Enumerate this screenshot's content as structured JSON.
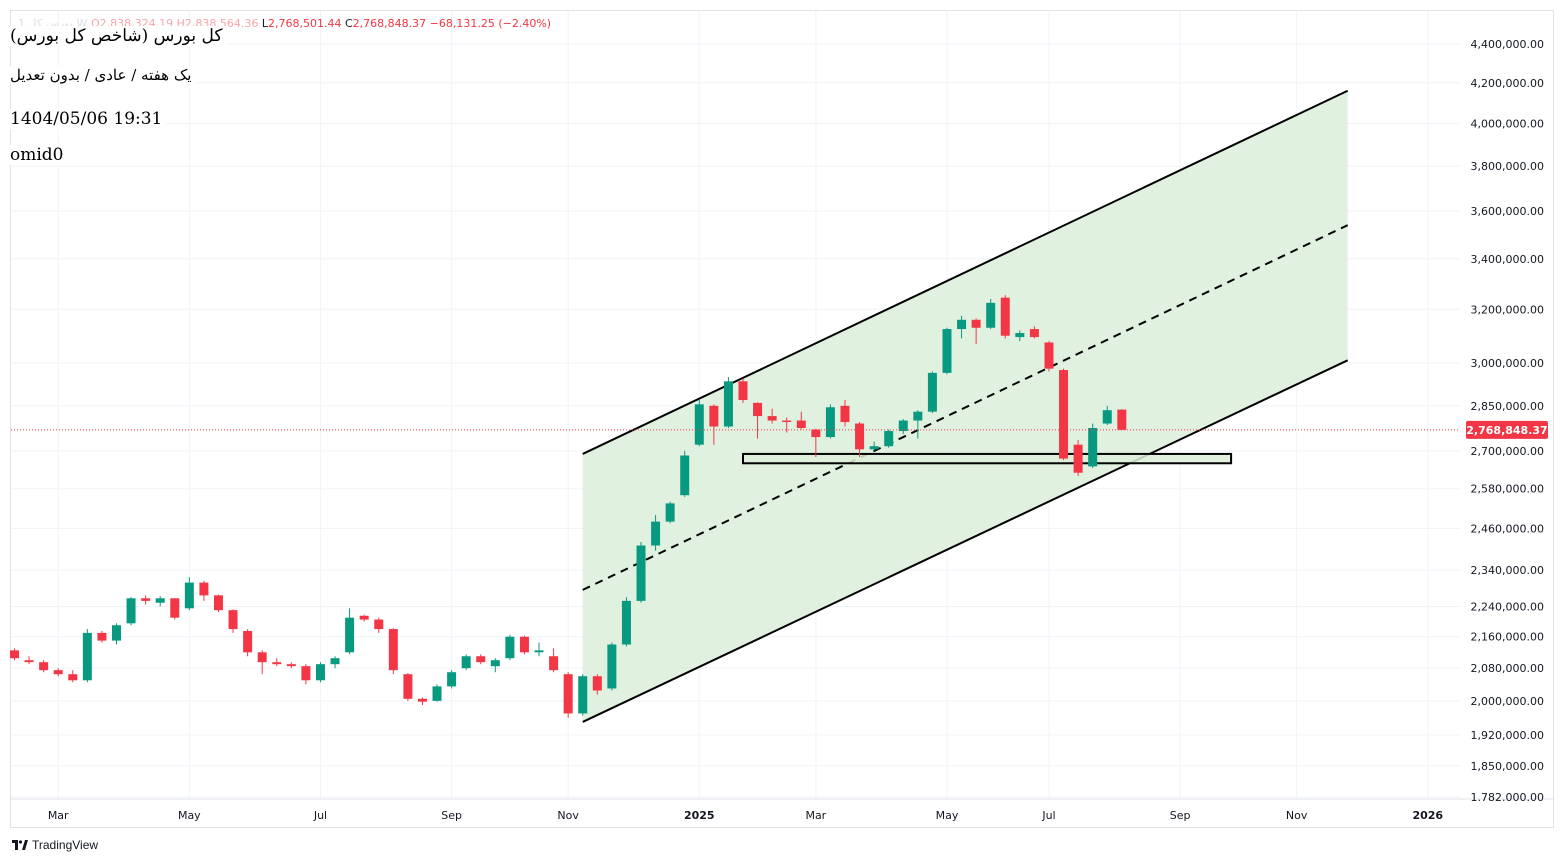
{
  "header": {
    "symbol_prefix": "1 بورس کل W",
    "ohlc_faded": "O2,838,324.19  H2,838,564.36",
    "low_label": "L",
    "low_value": "2,768,501.44",
    "close_label": "C",
    "close_value": "2,768,848.37",
    "change": "−68,131.25 (−2.40%)"
  },
  "overlay": {
    "title": "کل بورس (شاخص کل بورس)",
    "subtitle": "یک هفته / عادی / بدون تعدیل",
    "datetime": "1404/05/06 19:31",
    "author": "omid0"
  },
  "branding": {
    "logo_text": "TradingView",
    "logo_icon": "tradingview-logo-icon"
  },
  "colors": {
    "up": "#089981",
    "down": "#f23645",
    "channel_fill": "#ddf0dd",
    "channel_line": "#000000",
    "support_box_fill": "#dcefd8",
    "price_line": "#f23645",
    "grid": "#f0f3fa"
  },
  "chart_data": {
    "type": "candlestick",
    "timeframe": "1W",
    "last_price_label": "2,768,848.37",
    "last_price": 2768848.37,
    "yaxis_ticks": [
      {
        "value": 4400000,
        "label": "4,400,000.00"
      },
      {
        "value": 4200000,
        "label": "4,200,000.00"
      },
      {
        "value": 4000000,
        "label": "4,000,000.00"
      },
      {
        "value": 3800000,
        "label": "3,800,000.00"
      },
      {
        "value": 3600000,
        "label": "3,600,000.00"
      },
      {
        "value": 3400000,
        "label": "3,400,000.00"
      },
      {
        "value": 3200000,
        "label": "3,200,000.00"
      },
      {
        "value": 3000000,
        "label": "3,000,000.00"
      },
      {
        "value": 2850000,
        "label": "2,850,000.00"
      },
      {
        "value": 2700000,
        "label": "2,700,000.00"
      },
      {
        "value": 2580000,
        "label": "2,580,000.00"
      },
      {
        "value": 2460000,
        "label": "2,460,000.00"
      },
      {
        "value": 2340000,
        "label": "2,340,000.00"
      },
      {
        "value": 2240000,
        "label": "2,240,000.00"
      },
      {
        "value": 2160000,
        "label": "2,160,000.00"
      },
      {
        "value": 2080000,
        "label": "2,080,000.00"
      },
      {
        "value": 2000000,
        "label": "2,000,000.00"
      },
      {
        "value": 1920000,
        "label": "1,920,000.00"
      },
      {
        "value": 1850000,
        "label": "1,850,000.00"
      },
      {
        "value": 1782000,
        "label": "1.782.000.00"
      }
    ],
    "xaxis_ticks": [
      {
        "week": 3,
        "label": "Mar",
        "bold": false
      },
      {
        "week": 12,
        "label": "May",
        "bold": false
      },
      {
        "week": 21,
        "label": "Jul",
        "bold": false
      },
      {
        "week": 30,
        "label": "Sep",
        "bold": false
      },
      {
        "week": 38,
        "label": "Nov",
        "bold": false
      },
      {
        "week": 47,
        "label": "2025",
        "bold": true
      },
      {
        "week": 55,
        "label": "Mar",
        "bold": false
      },
      {
        "week": 64,
        "label": "May",
        "bold": false
      },
      {
        "week": 71,
        "label": "Jul",
        "bold": false
      },
      {
        "week": 80,
        "label": "Sep",
        "bold": false
      },
      {
        "week": 88,
        "label": "Nov",
        "bold": false
      },
      {
        "week": 97,
        "label": "2026",
        "bold": true
      }
    ],
    "candles": [
      {
        "o": 2125000,
        "h": 2130000,
        "l": 2100000,
        "c": 2105000
      },
      {
        "o": 2100000,
        "h": 2110000,
        "l": 2090000,
        "c": 2095000
      },
      {
        "o": 2095000,
        "h": 2100000,
        "l": 2070000,
        "c": 2075000
      },
      {
        "o": 2075000,
        "h": 2080000,
        "l": 2060000,
        "c": 2065000
      },
      {
        "o": 2065000,
        "h": 2075000,
        "l": 2045000,
        "c": 2050000
      },
      {
        "o": 2050000,
        "h": 2180000,
        "l": 2045000,
        "c": 2170000
      },
      {
        "o": 2170000,
        "h": 2175000,
        "l": 2145000,
        "c": 2150000
      },
      {
        "o": 2150000,
        "h": 2195000,
        "l": 2140000,
        "c": 2190000
      },
      {
        "o": 2195000,
        "h": 2265000,
        "l": 2190000,
        "c": 2262000
      },
      {
        "o": 2262000,
        "h": 2270000,
        "l": 2245000,
        "c": 2255000
      },
      {
        "o": 2250000,
        "h": 2268000,
        "l": 2240000,
        "c": 2262000
      },
      {
        "o": 2262000,
        "h": 2262000,
        "l": 2205000,
        "c": 2210000
      },
      {
        "o": 2235000,
        "h": 2320000,
        "l": 2230000,
        "c": 2305000
      },
      {
        "o": 2305000,
        "h": 2310000,
        "l": 2255000,
        "c": 2270000
      },
      {
        "o": 2270000,
        "h": 2272000,
        "l": 2225000,
        "c": 2230000
      },
      {
        "o": 2230000,
        "h": 2232000,
        "l": 2170000,
        "c": 2180000
      },
      {
        "o": 2175000,
        "h": 2180000,
        "l": 2110000,
        "c": 2120000
      },
      {
        "o": 2120000,
        "h": 2125000,
        "l": 2065000,
        "c": 2095000
      },
      {
        "o": 2095000,
        "h": 2105000,
        "l": 2085000,
        "c": 2090000
      },
      {
        "o": 2090000,
        "h": 2095000,
        "l": 2080000,
        "c": 2085000
      },
      {
        "o": 2085000,
        "h": 2090000,
        "l": 2040000,
        "c": 2050000
      },
      {
        "o": 2050000,
        "h": 2095000,
        "l": 2045000,
        "c": 2090000
      },
      {
        "o": 2090000,
        "h": 2110000,
        "l": 2080000,
        "c": 2105000
      },
      {
        "o": 2120000,
        "h": 2235000,
        "l": 2115000,
        "c": 2210000
      },
      {
        "o": 2215000,
        "h": 2218000,
        "l": 2200000,
        "c": 2205000
      },
      {
        "o": 2205000,
        "h": 2210000,
        "l": 2170000,
        "c": 2180000
      },
      {
        "o": 2180000,
        "h": 2182000,
        "l": 2065000,
        "c": 2075000
      },
      {
        "o": 2065000,
        "h": 2068000,
        "l": 2000000,
        "c": 2005000
      },
      {
        "o": 2005000,
        "h": 2008000,
        "l": 1990000,
        "c": 1998000
      },
      {
        "o": 2000000,
        "h": 2040000,
        "l": 1998000,
        "c": 2035000
      },
      {
        "o": 2035000,
        "h": 2075000,
        "l": 2030000,
        "c": 2070000
      },
      {
        "o": 2080000,
        "h": 2115000,
        "l": 2075000,
        "c": 2110000
      },
      {
        "o": 2110000,
        "h": 2115000,
        "l": 2090000,
        "c": 2095000
      },
      {
        "o": 2085000,
        "h": 2105000,
        "l": 2070000,
        "c": 2100000
      },
      {
        "o": 2105000,
        "h": 2165000,
        "l": 2100000,
        "c": 2160000
      },
      {
        "o": 2160000,
        "h": 2163000,
        "l": 2115000,
        "c": 2120000
      },
      {
        "o": 2120000,
        "h": 2145000,
        "l": 2110000,
        "c": 2125000
      },
      {
        "o": 2110000,
        "h": 2130000,
        "l": 2070000,
        "c": 2075000
      },
      {
        "o": 2065000,
        "h": 2070000,
        "l": 1960000,
        "c": 1970000
      },
      {
        "o": 1970000,
        "h": 2065000,
        "l": 1965000,
        "c": 2060000
      },
      {
        "o": 2060000,
        "h": 2065000,
        "l": 2015000,
        "c": 2025000
      },
      {
        "o": 2030000,
        "h": 2145000,
        "l": 2025000,
        "c": 2140000
      },
      {
        "o": 2140000,
        "h": 2265000,
        "l": 2135000,
        "c": 2255000
      },
      {
        "o": 2255000,
        "h": 2420000,
        "l": 2250000,
        "c": 2410000
      },
      {
        "o": 2410000,
        "h": 2500000,
        "l": 2395000,
        "c": 2480000
      },
      {
        "o": 2480000,
        "h": 2540000,
        "l": 2475000,
        "c": 2535000
      },
      {
        "o": 2560000,
        "h": 2700000,
        "l": 2555000,
        "c": 2685000
      },
      {
        "o": 2720000,
        "h": 2870000,
        "l": 2715000,
        "c": 2855000
      },
      {
        "o": 2850000,
        "h": 2855000,
        "l": 2720000,
        "c": 2780000
      },
      {
        "o": 2780000,
        "h": 2950000,
        "l": 2775000,
        "c": 2935000
      },
      {
        "o": 2935000,
        "h": 2945000,
        "l": 2860000,
        "c": 2870000
      },
      {
        "o": 2860000,
        "h": 2862000,
        "l": 2740000,
        "c": 2815000
      },
      {
        "o": 2815000,
        "h": 2840000,
        "l": 2790000,
        "c": 2800000
      },
      {
        "o": 2800000,
        "h": 2810000,
        "l": 2760000,
        "c": 2795000
      },
      {
        "o": 2800000,
        "h": 2830000,
        "l": 2770000,
        "c": 2775000
      },
      {
        "o": 2770000,
        "h": 2772000,
        "l": 2680000,
        "c": 2745000
      },
      {
        "o": 2745000,
        "h": 2855000,
        "l": 2740000,
        "c": 2845000
      },
      {
        "o": 2850000,
        "h": 2870000,
        "l": 2780000,
        "c": 2795000
      },
      {
        "o": 2790000,
        "h": 2795000,
        "l": 2680000,
        "c": 2705000
      },
      {
        "o": 2705000,
        "h": 2730000,
        "l": 2700000,
        "c": 2715000
      },
      {
        "o": 2715000,
        "h": 2770000,
        "l": 2710000,
        "c": 2765000
      },
      {
        "o": 2765000,
        "h": 2805000,
        "l": 2755000,
        "c": 2800000
      },
      {
        "o": 2800000,
        "h": 2835000,
        "l": 2740000,
        "c": 2830000
      },
      {
        "o": 2830000,
        "h": 2970000,
        "l": 2825000,
        "c": 2965000
      },
      {
        "o": 2965000,
        "h": 3130000,
        "l": 2960000,
        "c": 3125000
      },
      {
        "o": 3125000,
        "h": 3175000,
        "l": 3090000,
        "c": 3160000
      },
      {
        "o": 3160000,
        "h": 3165000,
        "l": 3070000,
        "c": 3130000
      },
      {
        "o": 3130000,
        "h": 3240000,
        "l": 3125000,
        "c": 3225000
      },
      {
        "o": 3245000,
        "h": 3255000,
        "l": 3090000,
        "c": 3100000
      },
      {
        "o": 3095000,
        "h": 3120000,
        "l": 3080000,
        "c": 3110000
      },
      {
        "o": 3125000,
        "h": 3135000,
        "l": 3090000,
        "c": 3095000
      },
      {
        "o": 3075000,
        "h": 3080000,
        "l": 2970000,
        "c": 2980000
      },
      {
        "o": 2975000,
        "h": 2980000,
        "l": 2670000,
        "c": 2675000
      },
      {
        "o": 2720000,
        "h": 2735000,
        "l": 2620000,
        "c": 2630000
      },
      {
        "o": 2650000,
        "h": 2790000,
        "l": 2645000,
        "c": 2775000
      },
      {
        "o": 2790000,
        "h": 2850000,
        "l": 2785000,
        "c": 2835000
      },
      {
        "o": 2837000,
        "h": 2838500,
        "l": 2768500,
        "c": 2768848
      }
    ],
    "channel": {
      "start_week": 39,
      "end_week": 91.5,
      "lower": [
        1950000,
        3010000
      ],
      "middle": [
        2285000,
        3540000
      ],
      "upper": [
        2690000,
        4160000
      ]
    },
    "support_zone": {
      "start_week": 50,
      "end_week": 83.5,
      "low": 2660000,
      "high": 2690000
    }
  }
}
